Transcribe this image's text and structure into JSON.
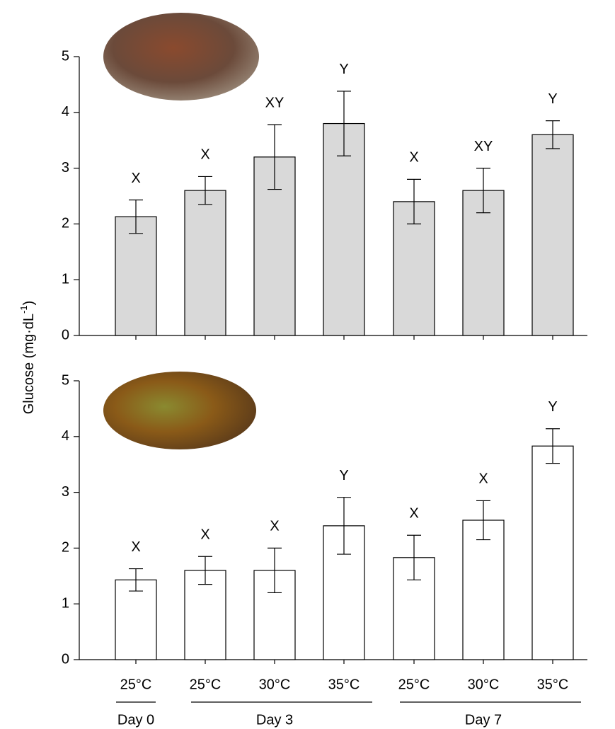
{
  "y_label": {
    "main": "Glucose (mg·dL",
    "sup": "-1",
    "end": ")"
  },
  "chart_data": [
    {
      "type": "bar",
      "color": "#d9d9d9",
      "values": [
        2.13,
        2.6,
        3.2,
        3.8,
        2.4,
        2.6,
        3.6
      ],
      "errors": [
        0.3,
        0.25,
        0.58,
        0.58,
        0.4,
        0.4,
        0.25
      ],
      "annotations": [
        "X",
        "X",
        "XY",
        "Y",
        "X",
        "XY",
        "Y"
      ],
      "ylim": [
        0,
        5
      ],
      "yticks": [
        0,
        1,
        2,
        3,
        4,
        5
      ]
    },
    {
      "type": "bar",
      "color": "#ffffff",
      "categories": [
        "25°C",
        "25°C",
        "30°C",
        "35°C",
        "25°C",
        "30°C",
        "35°C"
      ],
      "groups": [
        "Day 0",
        "Day 3",
        "Day 7"
      ],
      "values": [
        1.43,
        1.6,
        1.6,
        2.4,
        1.83,
        2.5,
        3.83
      ],
      "errors": [
        0.2,
        0.25,
        0.4,
        0.51,
        0.4,
        0.35,
        0.31
      ],
      "annotations": [
        "X",
        "X",
        "X",
        "Y",
        "X",
        "X",
        "Y"
      ],
      "ylim": [
        0,
        5
      ],
      "yticks": [
        0,
        1,
        2,
        3,
        4,
        5
      ]
    }
  ]
}
